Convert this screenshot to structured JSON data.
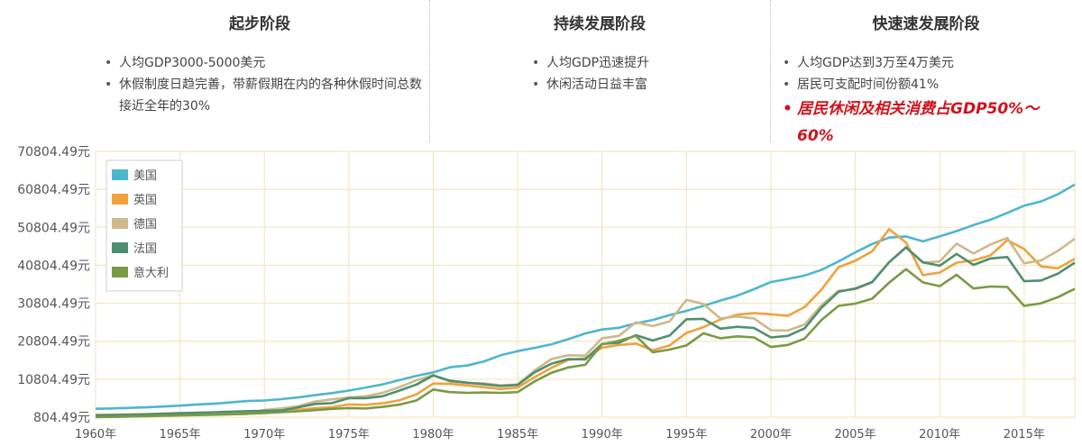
{
  "stages": [
    {
      "title": "起步阶段",
      "bullets": [
        "人均GDP3000-5000美元",
        "休假制度日趋完善，带薪假期在内的各种休假时间总数接近全年的30%"
      ]
    },
    {
      "title": "持续发展阶段",
      "bullets": [
        "人均GDP迅速提升",
        "休闲活动日益丰富"
      ]
    },
    {
      "title": "快速速发展阶段",
      "bullets": [
        "人均GDP达到3万至4万美元",
        "居民可支配时间份额41%"
      ],
      "highlight": "居民休闲及相关消费占GDP50%～60%"
    }
  ],
  "colors": {
    "美国": "#4db6cf",
    "英国": "#f0a13c",
    "德国": "#cdb98a",
    "法国": "#4f8f70",
    "意大利": "#7a9a45",
    "grid": "#f0e3b2"
  },
  "chart_data": {
    "type": "line",
    "title": "",
    "xlabel": "",
    "ylabel": "",
    "x_ticks": [
      "1960年",
      "1965年",
      "1970年",
      "1975年",
      "1980年",
      "1985年",
      "1990年",
      "1995年",
      "2000年",
      "2005年",
      "2010年",
      "2015年"
    ],
    "y_ticks": [
      "804.49元",
      "10804.49元",
      "20804.49元",
      "30804.49元",
      "40804.49元",
      "50804.49元",
      "60804.49元",
      "70804.49元"
    ],
    "ylim": [
      804.49,
      70804.49
    ],
    "xlim": [
      1960,
      2018
    ],
    "grid": true,
    "legend": "top-left",
    "x": [
      1960,
      1961,
      1962,
      1963,
      1964,
      1965,
      1966,
      1967,
      1968,
      1969,
      1970,
      1971,
      1972,
      1973,
      1974,
      1975,
      1976,
      1977,
      1978,
      1979,
      1980,
      1981,
      1982,
      1983,
      1984,
      1985,
      1986,
      1987,
      1988,
      1989,
      1990,
      1991,
      1992,
      1993,
      1994,
      1995,
      1996,
      1997,
      1998,
      1999,
      2000,
      2001,
      2002,
      2003,
      2004,
      2005,
      2006,
      2007,
      2008,
      2009,
      2010,
      2011,
      2012,
      2013,
      2014,
      2015,
      2016,
      2017,
      2018
    ],
    "series": [
      {
        "name": "美国",
        "values": [
          3000,
          3100,
          3250,
          3400,
          3600,
          3850,
          4150,
          4350,
          4700,
          5050,
          5200,
          5550,
          6000,
          6600,
          7150,
          7800,
          8600,
          9450,
          10550,
          11700,
          12600,
          13950,
          14400,
          15500,
          17100,
          18200,
          19050,
          20000,
          21350,
          22850,
          23900,
          24350,
          25500,
          26400,
          27700,
          28800,
          30100,
          31500,
          32800,
          34500,
          36400,
          37200,
          38100,
          39600,
          41800,
          44200,
          46400,
          48100,
          48400,
          47100,
          48400,
          49800,
          51400,
          52800,
          54600,
          56500,
          57600,
          59500,
          62100
        ]
      },
      {
        "name": "英国",
        "values": [
          1400,
          1480,
          1530,
          1640,
          1760,
          1880,
          1980,
          2040,
          1900,
          2010,
          2240,
          2460,
          2750,
          3150,
          3450,
          4150,
          4050,
          4450,
          5250,
          6800,
          9650,
          9550,
          9150,
          8700,
          8200,
          8600,
          11350,
          13800,
          15900,
          16300,
          19100,
          19800,
          20200,
          18400,
          19700,
          23000,
          24500,
          26500,
          27800,
          28200,
          27900,
          27500,
          29800,
          34400,
          40300,
          42000,
          44500,
          50300,
          46800,
          38200,
          38900,
          41500,
          42100,
          43400,
          47400,
          45100,
          40500,
          40000,
          42500
        ]
      },
      {
        "name": "德国",
        "values": [
          1100,
          1150,
          1200,
          1250,
          1300,
          1400,
          1450,
          1500,
          1580,
          1650,
          2700,
          3100,
          3700,
          4900,
          5500,
          6000,
          6300,
          7200,
          8700,
          10500,
          11900,
          10200,
          9800,
          9700,
          9200,
          9400,
          13100,
          16100,
          17100,
          17000,
          21600,
          22200,
          25800,
          24800,
          26000,
          31700,
          30600,
          26800,
          27300,
          26800,
          23700,
          23600,
          25200,
          30300,
          34100,
          34500,
          36300,
          41600,
          45600,
          41500,
          41800,
          46500,
          43900,
          46300,
          48000,
          41300,
          42100,
          44600,
          47800
        ]
      },
      {
        "name": "法国",
        "values": [
          1300,
          1350,
          1450,
          1550,
          1700,
          1850,
          1950,
          2100,
          2250,
          2400,
          2500,
          2550,
          3400,
          4300,
          4500,
          5800,
          5800,
          6300,
          7800,
          9400,
          11800,
          10400,
          9900,
          9500,
          9000,
          9300,
          12600,
          14900,
          16100,
          16000,
          20100,
          20400,
          22400,
          21000,
          22300,
          26600,
          26700,
          24100,
          24600,
          24300,
          21800,
          22200,
          24200,
          29600,
          33800,
          34700,
          36400,
          41600,
          45500,
          41600,
          40700,
          43800,
          40900,
          42600,
          43000,
          36600,
          36800,
          38600,
          41500
        ]
      },
      {
        "name": "意大利",
        "values": [
          800,
          880,
          960,
          1070,
          1160,
          1250,
          1340,
          1440,
          1560,
          1710,
          1900,
          2100,
          2350,
          2650,
          2990,
          3200,
          3100,
          3500,
          4100,
          5200,
          8100,
          7400,
          7200,
          7300,
          7200,
          7400,
          10200,
          12500,
          13900,
          14600,
          20000,
          20900,
          22200,
          17900,
          18600,
          19700,
          22900,
          21600,
          22100,
          21800,
          19300,
          19800,
          21500,
          26400,
          30100,
          30700,
          32000,
          36200,
          39800,
          36300,
          35300,
          38300,
          34700,
          35200,
          35100,
          30100,
          30800,
          32400,
          34600
        ]
      }
    ]
  }
}
